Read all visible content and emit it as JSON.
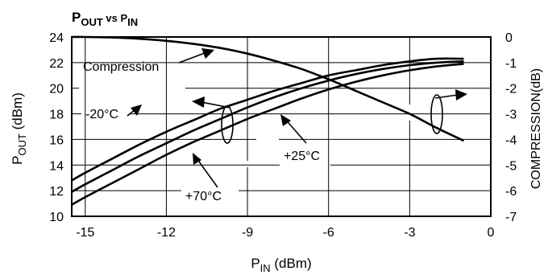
{
  "chart_data": {
    "type": "line",
    "title": {
      "p1": "P",
      "s1": "OUT",
      "mid": " vs P",
      "s2": "IN"
    },
    "xlabel": {
      "p": "P",
      "sub": "IN",
      "rest": " (dBm)"
    },
    "ylabel_left": {
      "p": "P",
      "sub": "OUT",
      "rest": " (dBm)"
    },
    "ylabel_right": "COMPRESSION(dB)",
    "xlim": [
      -15.5,
      0
    ],
    "ylim_left": [
      10,
      24
    ],
    "ylim_right": [
      -7,
      0
    ],
    "x_ticks": [
      -15,
      -12,
      -9,
      -6,
      -3,
      0
    ],
    "y_ticks_left": [
      10,
      12,
      14,
      16,
      18,
      20,
      22,
      24
    ],
    "y_ticks_right": [
      -7,
      -6,
      -5,
      -4,
      -3,
      -2,
      -1,
      0
    ],
    "grid": true,
    "series": [
      {
        "axis": "left",
        "x": [
          -15.5,
          -15,
          -14,
          -13,
          -12,
          -11,
          -10,
          -9,
          -8,
          -7,
          -6,
          -5,
          -4,
          -3,
          -2,
          -1
        ],
        "y": [
          12.8,
          13.4,
          14.5,
          15.6,
          16.6,
          17.5,
          18.4,
          19.1,
          19.8,
          20.4,
          21.0,
          21.4,
          21.8,
          22.1,
          22.3,
          22.3
        ]
      },
      {
        "axis": "left",
        "x": [
          -15.5,
          -15,
          -14,
          -13,
          -12,
          -11,
          -10,
          -9,
          -8,
          -7,
          -6,
          -5,
          -4,
          -3,
          -2,
          -1
        ],
        "y": [
          11.9,
          12.5,
          13.6,
          14.7,
          15.7,
          16.7,
          17.6,
          18.5,
          19.3,
          20.0,
          20.6,
          21.1,
          21.5,
          21.8,
          22.0,
          22.1
        ]
      },
      {
        "axis": "left",
        "x": [
          -15.5,
          -15,
          -14,
          -13,
          -12,
          -11,
          -10,
          -9,
          -8,
          -7,
          -6,
          -5,
          -4,
          -3,
          -2,
          -1
        ],
        "y": [
          10.9,
          11.5,
          12.6,
          13.7,
          14.8,
          15.8,
          16.7,
          17.6,
          18.4,
          19.2,
          19.9,
          20.5,
          21.0,
          21.4,
          21.7,
          21.9
        ]
      },
      {
        "axis": "right",
        "x": [
          -15.5,
          -15,
          -14,
          -13,
          -12,
          -11,
          -10,
          -9,
          -8,
          -7,
          -6,
          -5,
          -4,
          -3,
          -2,
          -1
        ],
        "y": [
          0,
          0,
          -0.02,
          -0.07,
          -0.15,
          -0.27,
          -0.43,
          -0.65,
          -0.93,
          -1.25,
          -1.65,
          -2.1,
          -2.55,
          -3.0,
          -3.55,
          -4.05
        ]
      }
    ],
    "annotations": {
      "compression": "Compression",
      "t_minus20": "-20°C",
      "t_plus25": "+25°C",
      "t_plus70": "+70°C"
    }
  }
}
